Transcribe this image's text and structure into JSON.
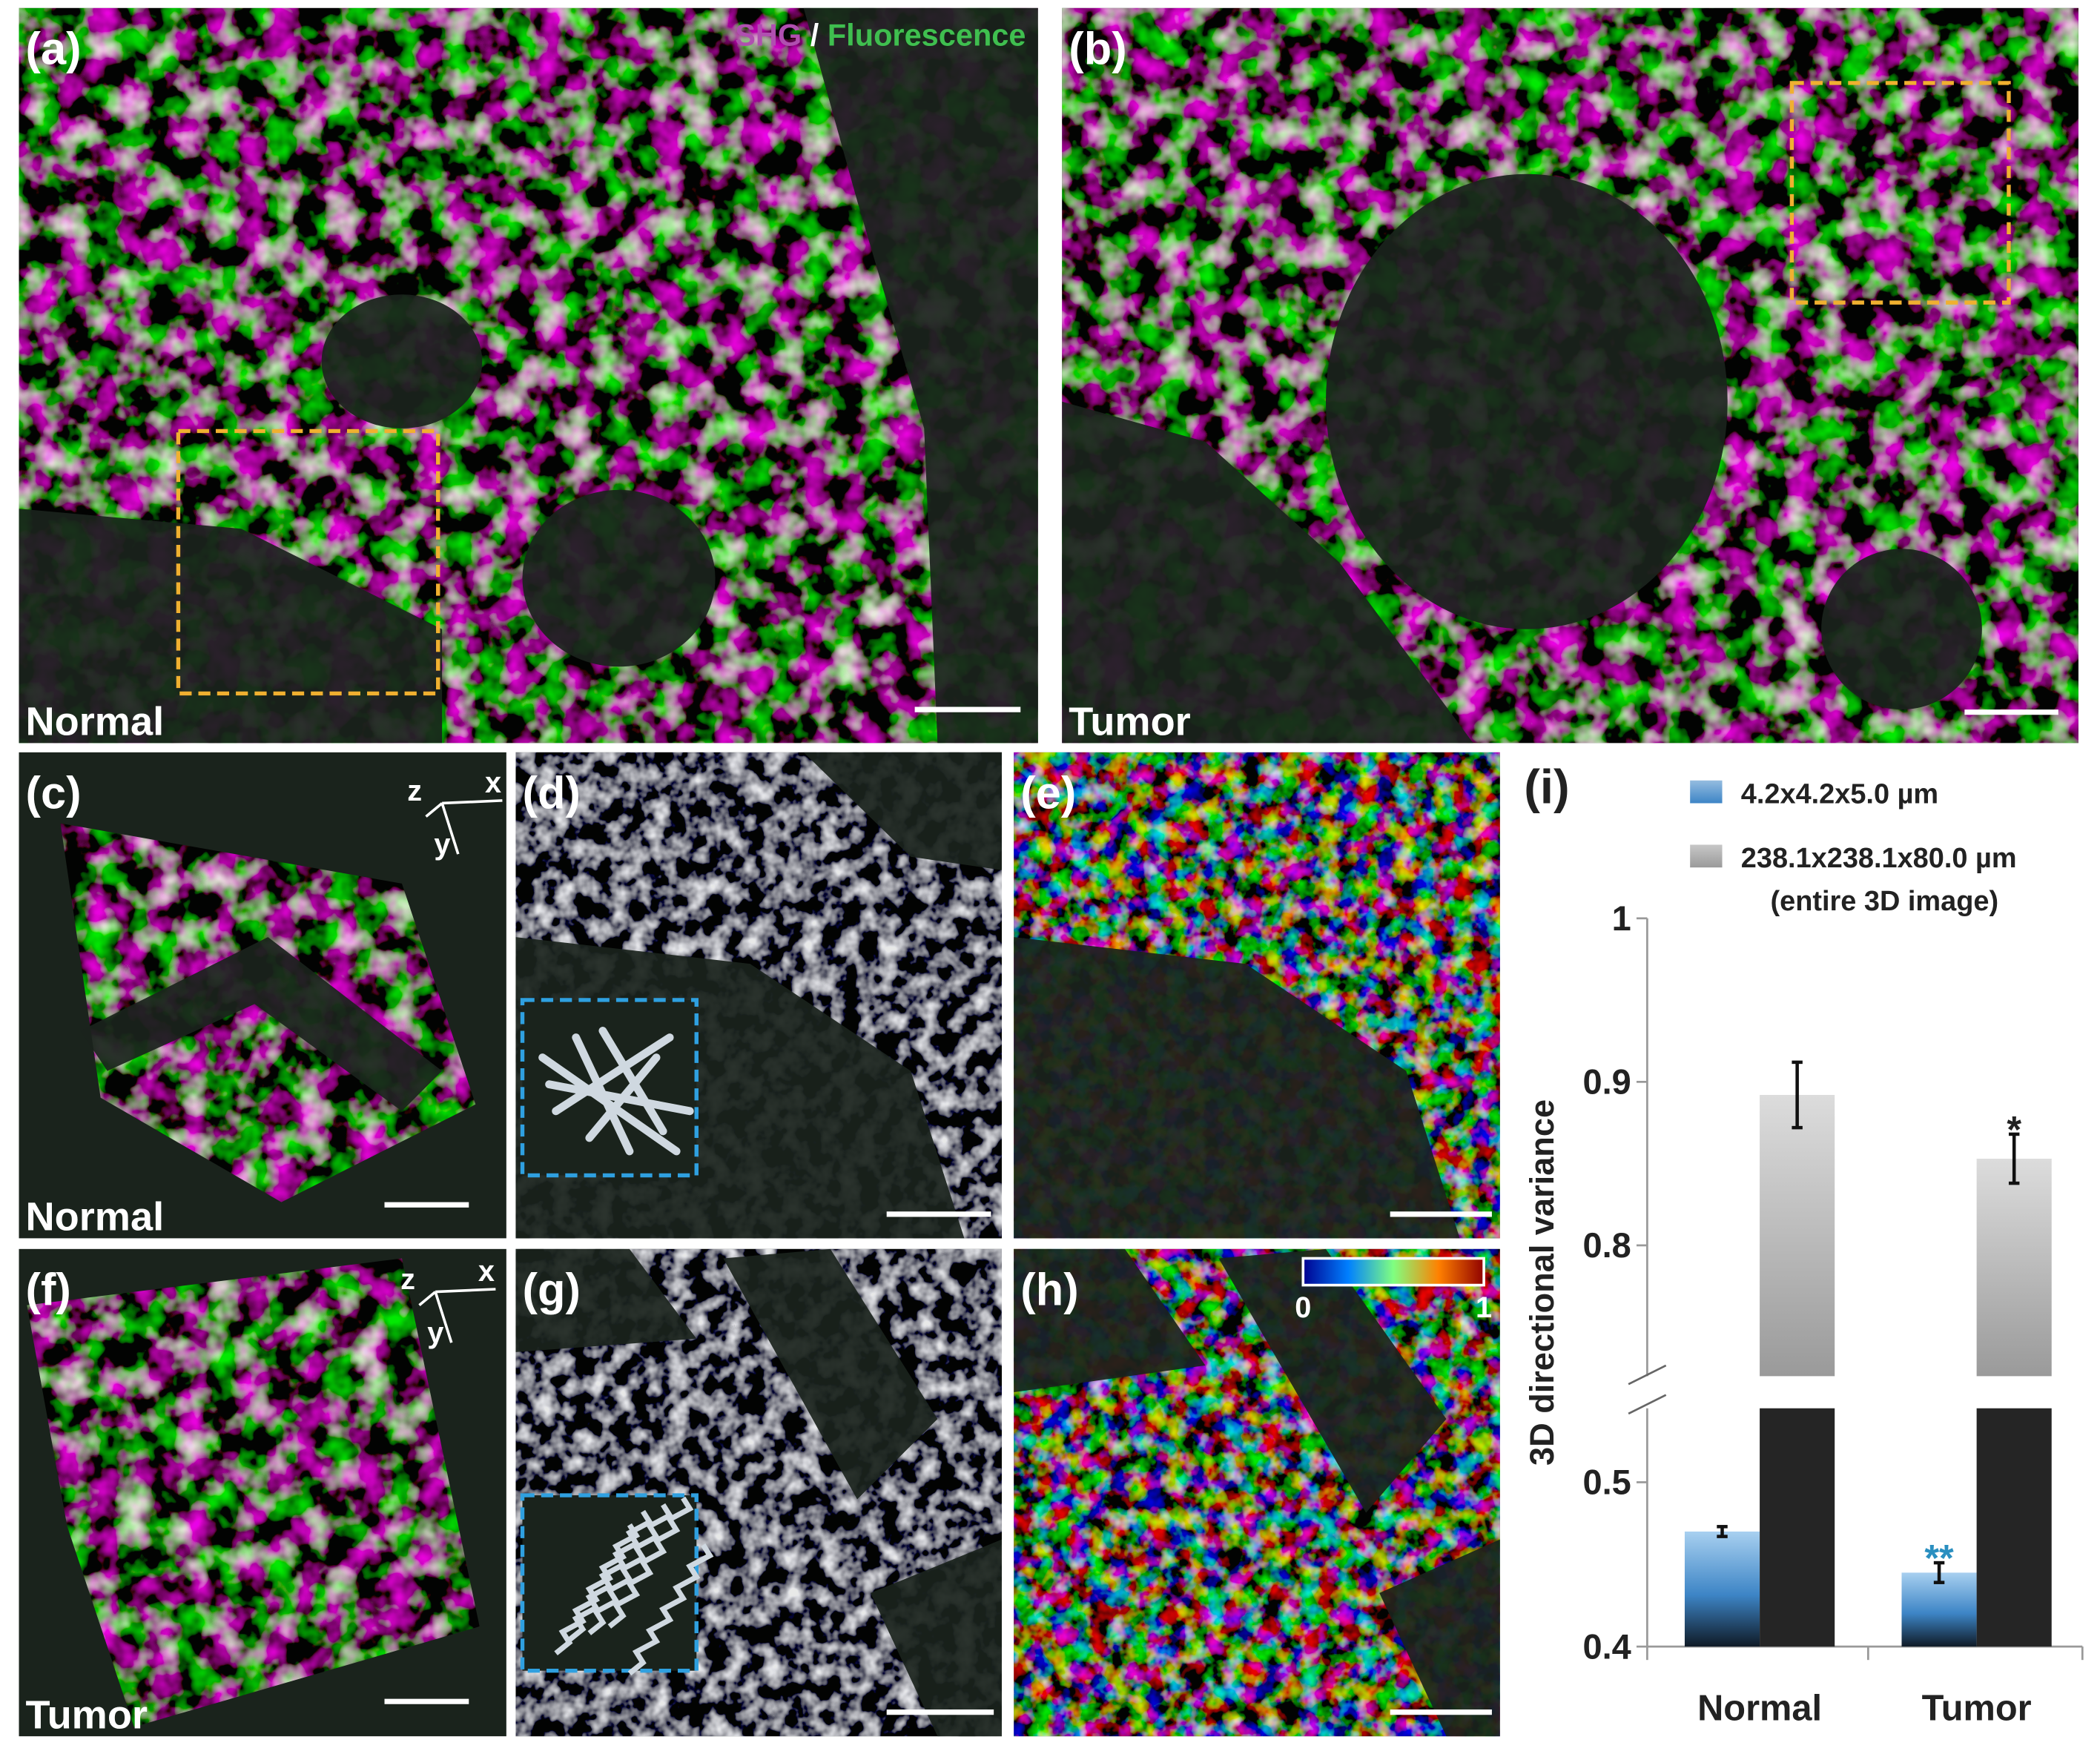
{
  "figure": {
    "panels": [
      {
        "label": "(a)",
        "tag": "Normal"
      },
      {
        "label": "(b)",
        "tag": "Tumor"
      },
      {
        "label": "(c)",
        "tag": "Normal"
      },
      {
        "label": "(d)"
      },
      {
        "label": "(e)"
      },
      {
        "label": "(f)",
        "tag": "Tumor"
      },
      {
        "label": "(g)"
      },
      {
        "label": "(h)"
      }
    ],
    "channels": [
      {
        "text": "SHG",
        "color": "#b04fb0"
      },
      {
        "text": "/",
        "color": "#ffffff"
      },
      {
        "text": "Fluorescence",
        "color": "#3fbf4f"
      }
    ],
    "axes": [
      "x",
      "y",
      "z"
    ],
    "colorbar_ticks": [
      0,
      1
    ]
  },
  "chart_data": {
    "type": "bar",
    "panel_label": "(i)",
    "categories": [
      "Normal",
      "Tumor"
    ],
    "series": [
      {
        "name": "4.2x4.2x5.0 µm",
        "color": "#3d85c6",
        "values": [
          0.47,
          0.445
        ],
        "errors": [
          0.003,
          0.006
        ]
      },
      {
        "name": "238.1x238.1x80.0 µm",
        "note": "(entire 3D image)",
        "color": "#9a9a9a",
        "values": [
          0.892,
          0.853
        ],
        "errors": [
          0.02,
          0.015
        ]
      }
    ],
    "ylabel": "3D directional variance",
    "ylim": [
      0.4,
      1
    ],
    "ybreak": [
      0.545,
      0.72
    ],
    "yticks": [
      0.4,
      0.5,
      0.8,
      0.9,
      1
    ],
    "annotations": [
      {
        "text": "**",
        "series": 0,
        "category": 1,
        "color": "#2a8fc0"
      },
      {
        "text": "*",
        "series": 1,
        "category": 1,
        "color": "#222222"
      }
    ]
  }
}
